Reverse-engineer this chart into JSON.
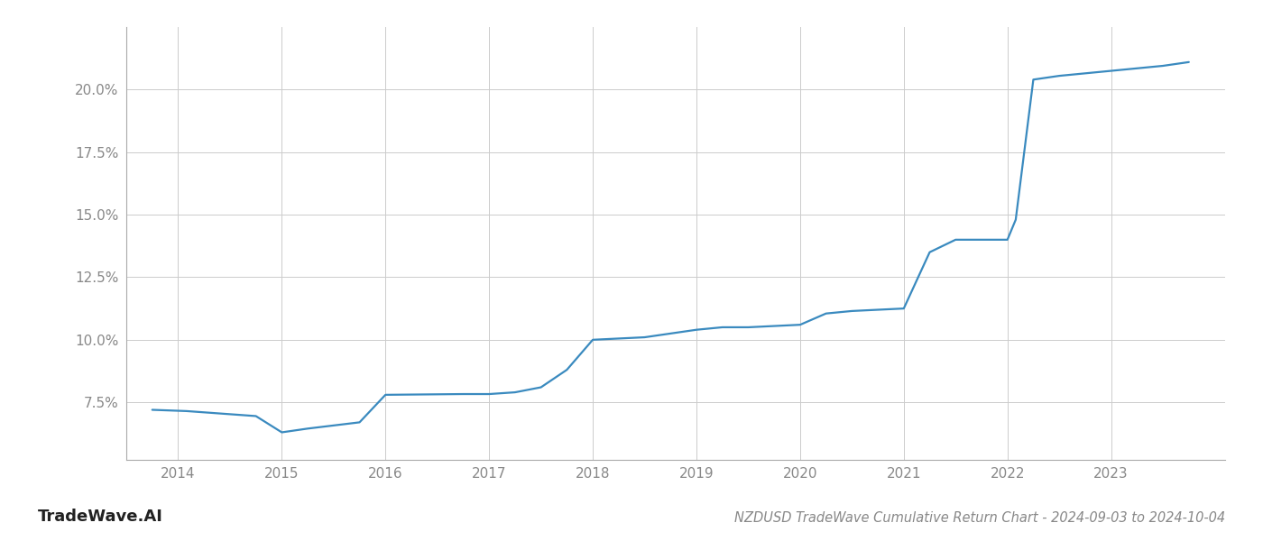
{
  "title": "NZDUSD TradeWave Cumulative Return Chart - 2024-09-03 to 2024-10-04",
  "watermark": "TradeWave.AI",
  "line_color": "#3a8abf",
  "background_color": "#ffffff",
  "grid_color": "#cccccc",
  "axis_color": "#aaaaaa",
  "text_color": "#888888",
  "watermark_color": "#222222",
  "x_values": [
    2013.75,
    2014.08,
    2014.75,
    2015.0,
    2015.25,
    2015.75,
    2016.0,
    2016.5,
    2016.75,
    2017.0,
    2017.25,
    2017.5,
    2017.75,
    2018.0,
    2018.25,
    2018.5,
    2019.0,
    2019.25,
    2019.5,
    2019.75,
    2020.0,
    2020.25,
    2020.5,
    2020.75,
    2021.0,
    2021.25,
    2021.5,
    2021.75,
    2022.0,
    2022.08,
    2022.25,
    2022.5,
    2022.75,
    2023.0,
    2023.25,
    2023.5,
    2023.75
  ],
  "y_values": [
    7.2,
    7.15,
    6.95,
    6.3,
    6.45,
    6.7,
    7.8,
    7.82,
    7.83,
    7.83,
    7.9,
    8.1,
    8.8,
    10.0,
    10.05,
    10.1,
    10.4,
    10.5,
    10.5,
    10.55,
    10.6,
    11.05,
    11.15,
    11.2,
    11.25,
    13.5,
    14.0,
    14.0,
    14.0,
    14.8,
    20.4,
    20.55,
    20.65,
    20.75,
    20.85,
    20.95,
    21.1
  ],
  "xlim": [
    2013.5,
    2024.1
  ],
  "ylim": [
    5.2,
    22.5
  ],
  "yticks": [
    7.5,
    10.0,
    12.5,
    15.0,
    17.5,
    20.0
  ],
  "xticks": [
    2014,
    2015,
    2016,
    2017,
    2018,
    2019,
    2020,
    2021,
    2022,
    2023
  ],
  "line_width": 1.6,
  "title_fontsize": 10.5,
  "tick_fontsize": 11,
  "watermark_fontsize": 13
}
